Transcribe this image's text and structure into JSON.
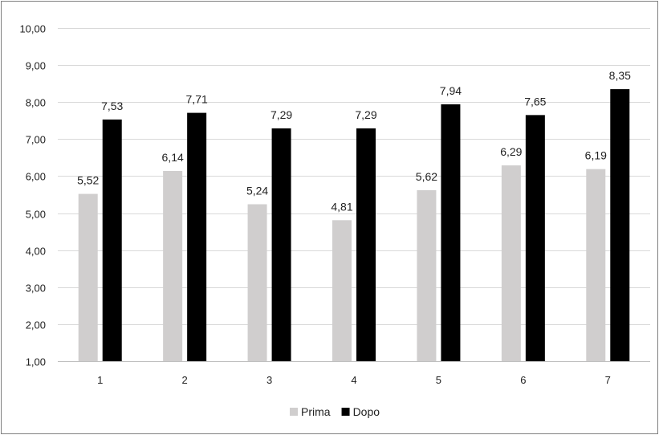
{
  "chart_data": {
    "type": "bar",
    "title": "",
    "xlabel": "",
    "ylabel": "",
    "categories": [
      "1",
      "2",
      "3",
      "4",
      "5",
      "6",
      "7"
    ],
    "series": [
      {
        "name": "Prima",
        "color": "#d0cece",
        "values": [
          5.52,
          6.14,
          5.24,
          4.81,
          5.62,
          6.29,
          6.19
        ],
        "labels": [
          "5,52",
          "6,14",
          "5,24",
          "4,81",
          "5,62",
          "6,29",
          "6,19"
        ]
      },
      {
        "name": "Dopo",
        "color": "#000000",
        "values": [
          7.53,
          7.71,
          7.29,
          7.29,
          7.94,
          7.65,
          8.35
        ],
        "labels": [
          "7,53",
          "7,71",
          "7,29",
          "7,29",
          "7,94",
          "7,65",
          "8,35"
        ]
      }
    ],
    "ylim": [
      1,
      10
    ],
    "yticks": [
      1,
      2,
      3,
      4,
      5,
      6,
      7,
      8,
      9,
      10
    ],
    "ytick_labels": [
      "1,00",
      "2,00",
      "3,00",
      "4,00",
      "5,00",
      "6,00",
      "7,00",
      "8,00",
      "9,00",
      "10,00"
    ],
    "grid": true,
    "legend_position": "bottom"
  }
}
